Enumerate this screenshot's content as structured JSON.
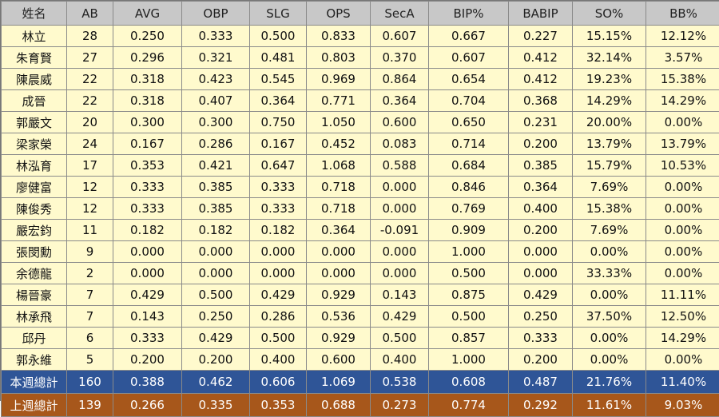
{
  "headers": [
    "姓名",
    "AB",
    "AVG",
    "OBP",
    "SLG",
    "OPS",
    "SecA",
    "BIP%",
    "BABIP",
    "SO%",
    "BB%"
  ],
  "rows": [
    [
      "林立",
      "28",
      "0.250",
      "0.333",
      "0.500",
      "0.833",
      "0.607",
      "0.667",
      "0.227",
      "15.15%",
      "12.12%"
    ],
    [
      "朱育賢",
      "27",
      "0.296",
      "0.321",
      "0.481",
      "0.803",
      "0.370",
      "0.607",
      "0.412",
      "32.14%",
      "3.57%"
    ],
    [
      "陳晨威",
      "22",
      "0.318",
      "0.423",
      "0.545",
      "0.969",
      "0.864",
      "0.654",
      "0.412",
      "19.23%",
      "15.38%"
    ],
    [
      "成晉",
      "22",
      "0.318",
      "0.407",
      "0.364",
      "0.771",
      "0.364",
      "0.704",
      "0.368",
      "14.29%",
      "14.29%"
    ],
    [
      "郭嚴文",
      "20",
      "0.300",
      "0.300",
      "0.750",
      "1.050",
      "0.600",
      "0.650",
      "0.231",
      "20.00%",
      "0.00%"
    ],
    [
      "梁家榮",
      "24",
      "0.167",
      "0.286",
      "0.167",
      "0.452",
      "0.083",
      "0.714",
      "0.200",
      "13.79%",
      "13.79%"
    ],
    [
      "林泓育",
      "17",
      "0.353",
      "0.421",
      "0.647",
      "1.068",
      "0.588",
      "0.684",
      "0.385",
      "15.79%",
      "10.53%"
    ],
    [
      "廖健富",
      "12",
      "0.333",
      "0.385",
      "0.333",
      "0.718",
      "0.000",
      "0.846",
      "0.364",
      "7.69%",
      "0.00%"
    ],
    [
      "陳俊秀",
      "12",
      "0.333",
      "0.385",
      "0.333",
      "0.718",
      "0.000",
      "0.769",
      "0.400",
      "15.38%",
      "0.00%"
    ],
    [
      "嚴宏鈞",
      "11",
      "0.182",
      "0.182",
      "0.182",
      "0.364",
      "-0.091",
      "0.909",
      "0.200",
      "7.69%",
      "0.00%"
    ],
    [
      "張閔勳",
      "9",
      "0.000",
      "0.000",
      "0.000",
      "0.000",
      "0.000",
      "1.000",
      "0.000",
      "0.00%",
      "0.00%"
    ],
    [
      "余德龍",
      "2",
      "0.000",
      "0.000",
      "0.000",
      "0.000",
      "0.000",
      "0.500",
      "0.000",
      "33.33%",
      "0.00%"
    ],
    [
      "楊晉豪",
      "7",
      "0.429",
      "0.500",
      "0.429",
      "0.929",
      "0.143",
      "0.875",
      "0.429",
      "0.00%",
      "11.11%"
    ],
    [
      "林承飛",
      "7",
      "0.143",
      "0.250",
      "0.286",
      "0.536",
      "0.429",
      "0.500",
      "0.250",
      "37.50%",
      "12.50%"
    ],
    [
      "邱丹",
      "6",
      "0.333",
      "0.429",
      "0.500",
      "0.929",
      "0.500",
      "0.857",
      "0.333",
      "0.00%",
      "14.29%"
    ],
    [
      "郭永維",
      "5",
      "0.200",
      "0.200",
      "0.400",
      "0.600",
      "0.400",
      "1.000",
      "0.200",
      "0.00%",
      "0.00%"
    ]
  ],
  "totals_this_week": [
    "本週總計",
    "160",
    "0.388",
    "0.462",
    "0.606",
    "1.069",
    "0.538",
    "0.608",
    "0.487",
    "21.76%",
    "11.40%"
  ],
  "totals_last_week": [
    "上週總計",
    "139",
    "0.266",
    "0.335",
    "0.353",
    "0.688",
    "0.273",
    "0.774",
    "0.292",
    "11.61%",
    "9.03%"
  ],
  "colors": {
    "header_bg": "#c8c8c8",
    "row_bg": "#fffacd",
    "this_week_bg": "#2f5597",
    "last_week_bg": "#a7571b"
  }
}
